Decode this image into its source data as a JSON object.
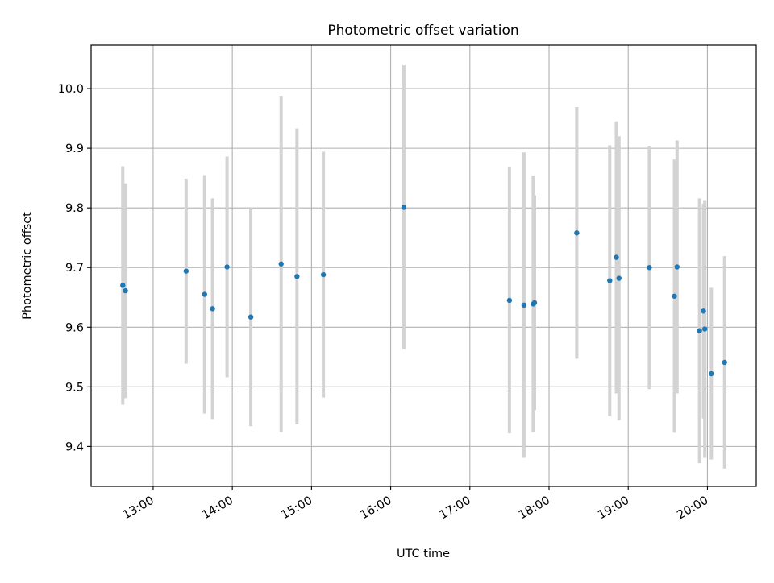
{
  "chart_data": {
    "type": "scatter",
    "title": "Photometric offset variation",
    "xlabel": "UTC time",
    "ylabel": "Photometric offset",
    "x_unit": "UTC time (HH:MM)",
    "xlim": [
      "12:13",
      "20:37"
    ],
    "ylim": [
      9.333,
      10.073
    ],
    "x_ticks": [
      "13:00",
      "14:00",
      "15:00",
      "16:00",
      "17:00",
      "18:00",
      "19:00",
      "20:00"
    ],
    "y_ticks": [
      "9.4",
      "9.5",
      "9.6",
      "9.7",
      "9.8",
      "9.9",
      "10.0"
    ],
    "grid": true,
    "legend": "none",
    "colors": {
      "point": "#1f77b4",
      "errorbar": "#d3d3d3",
      "grid": "#b0b0b0"
    },
    "points": [
      {
        "x": "12:37",
        "y": 9.67,
        "err": 0.2
      },
      {
        "x": "12:39",
        "y": 9.661,
        "err": 0.18
      },
      {
        "x": "13:25",
        "y": 9.694,
        "err": 0.155
      },
      {
        "x": "13:39",
        "y": 9.655,
        "err": 0.2
      },
      {
        "x": "13:45",
        "y": 9.631,
        "err": 0.185
      },
      {
        "x": "13:56",
        "y": 9.701,
        "err": 0.185
      },
      {
        "x": "14:14",
        "y": 9.617,
        "err": 0.183
      },
      {
        "x": "14:37",
        "y": 9.706,
        "err": 0.282
      },
      {
        "x": "14:49",
        "y": 9.685,
        "err": 0.248
      },
      {
        "x": "15:09",
        "y": 9.688,
        "err": 0.206
      },
      {
        "x": "16:10",
        "y": 9.801,
        "err": 0.238
      },
      {
        "x": "17:30",
        "y": 9.645,
        "err": 0.223
      },
      {
        "x": "17:41",
        "y": 9.637,
        "err": 0.256
      },
      {
        "x": "17:48",
        "y": 9.639,
        "err": 0.215
      },
      {
        "x": "17:49",
        "y": 9.641,
        "err": 0.18
      },
      {
        "x": "18:21",
        "y": 9.758,
        "err": 0.211
      },
      {
        "x": "18:46",
        "y": 9.678,
        "err": 0.227
      },
      {
        "x": "18:51",
        "y": 9.717,
        "err": 0.228
      },
      {
        "x": "18:53",
        "y": 9.682,
        "err": 0.238
      },
      {
        "x": "19:16",
        "y": 9.7,
        "err": 0.204
      },
      {
        "x": "19:35",
        "y": 9.652,
        "err": 0.229
      },
      {
        "x": "19:37",
        "y": 9.701,
        "err": 0.212
      },
      {
        "x": "19:54",
        "y": 9.594,
        "err": 0.222
      },
      {
        "x": "19:57",
        "y": 9.627,
        "err": 0.18
      },
      {
        "x": "19:58",
        "y": 9.597,
        "err": 0.216
      },
      {
        "x": "20:03",
        "y": 9.522,
        "err": 0.144
      },
      {
        "x": "20:13",
        "y": 9.541,
        "err": 0.178
      }
    ]
  }
}
